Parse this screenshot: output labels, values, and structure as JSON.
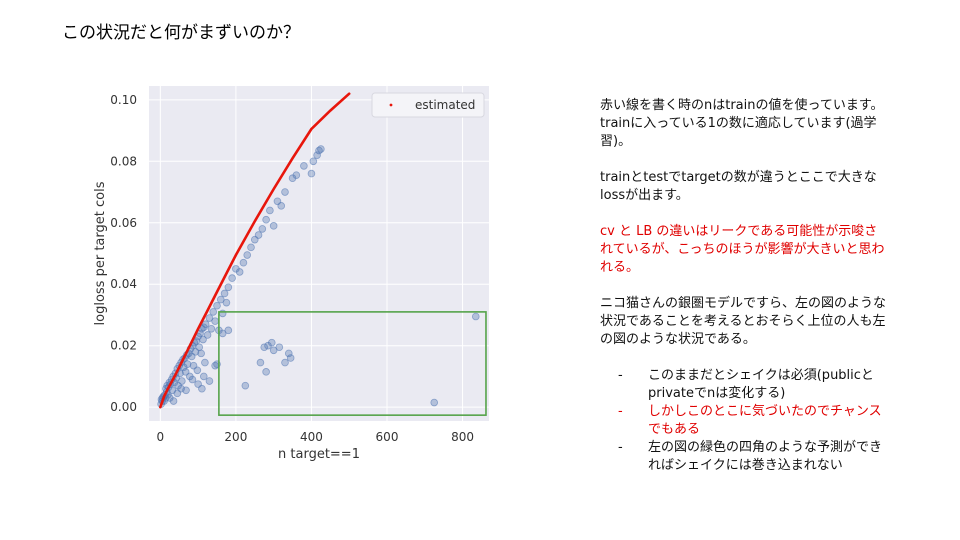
{
  "title": "この状況だと何がまずいのか？",
  "chart_data": {
    "type": "scatter",
    "xlabel": "n target==1",
    "ylabel": "logloss per target cols",
    "xlim": [
      -30,
      870
    ],
    "ylim": [
      -0.0045,
      0.1045
    ],
    "xticks": [
      0,
      200,
      400,
      600,
      800
    ],
    "yticks": [
      0.0,
      0.02,
      0.04,
      0.06,
      0.08,
      0.1
    ],
    "ytick_labels": [
      "0.00",
      "0.02",
      "0.04",
      "0.06",
      "0.08",
      "0.10"
    ],
    "legend": {
      "label": "estimated",
      "position": "top-right",
      "color": "#e8160c"
    },
    "point_color": "#4c72b0",
    "line_color": "#e8160c",
    "box_color": "#55a34a",
    "highlight_box": {
      "x0": 155,
      "x1": 862,
      "y0": -0.0026,
      "y1": 0.031
    },
    "estimated_line": [
      [
        0,
        0.0
      ],
      [
        10,
        0.0035
      ],
      [
        20,
        0.006
      ],
      [
        40,
        0.0105
      ],
      [
        60,
        0.0155
      ],
      [
        80,
        0.0205
      ],
      [
        100,
        0.0255
      ],
      [
        125,
        0.0315
      ],
      [
        150,
        0.0375
      ],
      [
        175,
        0.0435
      ],
      [
        200,
        0.0495
      ],
      [
        250,
        0.0605
      ],
      [
        300,
        0.071
      ],
      [
        350,
        0.081
      ],
      [
        400,
        0.0905
      ],
      [
        450,
        0.0965
      ],
      [
        500,
        0.102
      ]
    ],
    "points": [
      [
        2,
        0.001
      ],
      [
        3,
        0.0025
      ],
      [
        5,
        0.002
      ],
      [
        6,
        0.003
      ],
      [
        8,
        0.0035
      ],
      [
        10,
        0.002
      ],
      [
        12,
        0.004
      ],
      [
        14,
        0.003
      ],
      [
        15,
        0.006
      ],
      [
        17,
        0.005
      ],
      [
        18,
        0.007
      ],
      [
        20,
        0.004
      ],
      [
        22,
        0.0065
      ],
      [
        24,
        0.008
      ],
      [
        25,
        0.003
      ],
      [
        27,
        0.0075
      ],
      [
        30,
        0.009
      ],
      [
        32,
        0.0055
      ],
      [
        34,
        0.01
      ],
      [
        35,
        0.002
      ],
      [
        37,
        0.008
      ],
      [
        40,
        0.011
      ],
      [
        42,
        0.0095
      ],
      [
        45,
        0.0125
      ],
      [
        47,
        0.007
      ],
      [
        50,
        0.0135
      ],
      [
        52,
        0.011
      ],
      [
        55,
        0.0145
      ],
      [
        57,
        0.0085
      ],
      [
        60,
        0.0155
      ],
      [
        62,
        0.013
      ],
      [
        65,
        0.016
      ],
      [
        67,
        0.0115
      ],
      [
        70,
        0.017
      ],
      [
        72,
        0.014
      ],
      [
        75,
        0.0175
      ],
      [
        78,
        0.01
      ],
      [
        80,
        0.019
      ],
      [
        83,
        0.0165
      ],
      [
        85,
        0.02
      ],
      [
        88,
        0.0135
      ],
      [
        90,
        0.021
      ],
      [
        93,
        0.018
      ],
      [
        95,
        0.0215
      ],
      [
        98,
        0.012
      ],
      [
        100,
        0.023
      ],
      [
        103,
        0.0195
      ],
      [
        105,
        0.024
      ],
      [
        108,
        0.0175
      ],
      [
        110,
        0.0255
      ],
      [
        113,
        0.022
      ],
      [
        115,
        0.026
      ],
      [
        118,
        0.0145
      ],
      [
        120,
        0.027
      ],
      [
        125,
        0.0235
      ],
      [
        130,
        0.029
      ],
      [
        135,
        0.0255
      ],
      [
        140,
        0.031
      ],
      [
        145,
        0.028
      ],
      [
        150,
        0.033
      ],
      [
        155,
        0.025
      ],
      [
        160,
        0.035
      ],
      [
        165,
        0.0305
      ],
      [
        170,
        0.037
      ],
      [
        175,
        0.034
      ],
      [
        180,
        0.039
      ],
      [
        190,
        0.042
      ],
      [
        200,
        0.045
      ],
      [
        210,
        0.044
      ],
      [
        220,
        0.047
      ],
      [
        230,
        0.0495
      ],
      [
        240,
        0.052
      ],
      [
        250,
        0.0545
      ],
      [
        260,
        0.056
      ],
      [
        270,
        0.058
      ],
      [
        280,
        0.061
      ],
      [
        290,
        0.064
      ],
      [
        300,
        0.059
      ],
      [
        310,
        0.067
      ],
      [
        320,
        0.0655
      ],
      [
        330,
        0.07
      ],
      [
        350,
        0.0745
      ],
      [
        360,
        0.0755
      ],
      [
        380,
        0.0785
      ],
      [
        400,
        0.076
      ],
      [
        405,
        0.08
      ],
      [
        415,
        0.082
      ],
      [
        420,
        0.0835
      ],
      [
        425,
        0.084
      ],
      [
        45,
        0.0045
      ],
      [
        55,
        0.006
      ],
      [
        68,
        0.0055
      ],
      [
        85,
        0.009
      ],
      [
        100,
        0.0075
      ],
      [
        110,
        0.006
      ],
      [
        115,
        0.01
      ],
      [
        130,
        0.0085
      ],
      [
        145,
        0.0135
      ],
      [
        150,
        0.014
      ],
      [
        165,
        0.024
      ],
      [
        180,
        0.025
      ],
      [
        225,
        0.007
      ],
      [
        265,
        0.0145
      ],
      [
        275,
        0.0195
      ],
      [
        280,
        0.0115
      ],
      [
        285,
        0.02
      ],
      [
        295,
        0.021
      ],
      [
        300,
        0.0185
      ],
      [
        315,
        0.0195
      ],
      [
        330,
        0.0145
      ],
      [
        340,
        0.0175
      ],
      [
        345,
        0.016
      ],
      [
        725,
        0.0015
      ],
      [
        835,
        0.0295
      ]
    ]
  },
  "side_text": {
    "p1": "赤い線を書く時のnはtrainの値を使っています。trainに入っている1の数に適応しています(過学習)。",
    "p2": "trainとtestでtargetの数が違うとここで大きなlossが出ます。",
    "p3": "cv と LB の違いはリークである可能性が示唆されているが、こっちのほうが影響が大きいと思われる。",
    "p4": "ニコ猫さんの銀圏モデルですら、左の図のような状況であることを考えるとおそらく上位の人も左の図のような状況である。",
    "bullet_dash": "-",
    "bullets": [
      "このままだとシェイクは必須(publicとprivateでnは変化する)",
      "しかしこのとこに気づいたのでチャンスでもある",
      "左の図の緑色の四角のような予測ができればシェイクには巻き込まれない"
    ]
  }
}
